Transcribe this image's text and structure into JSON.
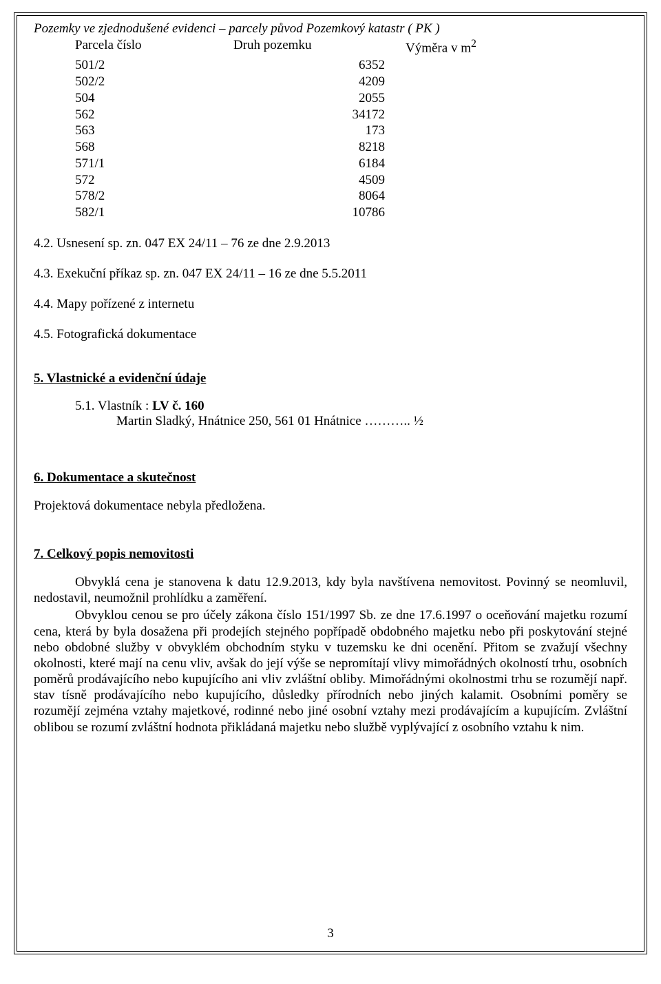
{
  "header": {
    "italic_title": "Pozemky ve zjednodušené evidenci – parcely původ Pozemkový katastr ( PK )",
    "col1": "Parcela číslo",
    "col2": "Druh pozemku",
    "col3": "Výměra v m",
    "col3_sup": "2"
  },
  "parcels": [
    {
      "num": "501/2",
      "area": "6352"
    },
    {
      "num": "502/2",
      "area": "4209"
    },
    {
      "num": "504",
      "area": "2055"
    },
    {
      "num": "562",
      "area": "34172"
    },
    {
      "num": "563",
      "area": "173"
    },
    {
      "num": "568",
      "area": "8218"
    },
    {
      "num": "571/1",
      "area": "6184"
    },
    {
      "num": "572",
      "area": "4509"
    },
    {
      "num": "578/2",
      "area": "8064"
    },
    {
      "num": "582/1",
      "area": "10786"
    }
  ],
  "items": {
    "i42": "4.2. Usnesení sp. zn. 047  EX 24/11 – 76 ze dne 2.9.2013",
    "i43": "4.3. Exekuční příkaz  sp. zn. 047  EX 24/11 – 16  ze dne 5.5.2011",
    "i44": "4.4. Mapy pořízené z internetu",
    "i45": "4.5. Fotografická dokumentace"
  },
  "section5": {
    "title": "5. Vlastnické a evidenční údaje",
    "owner_prefix": "5.1. Vlastník :   ",
    "owner_label": "LV č. 160",
    "owner_name": "Martin Sladký, Hnátnice 250, 561 01 Hnátnice ……….. ½"
  },
  "section6": {
    "title": "6. Dokumentace a skutečnost",
    "body": "Projektová dokumentace nebyla předložena."
  },
  "section7": {
    "title": "7. Celkový popis nemovitosti",
    "p1": "Obvyklá cena je stanovena k datu 12.9.2013, kdy byla navštívena nemovitost. Povinný se neomluvil, nedostavil,  neumožnil prohlídku a zaměření.",
    "p2": "Obvyklou cenou se pro účely zákona číslo 151/1997 Sb. ze dne 17.6.1997 o oceňování majetku rozumí cena, která by byla dosažena při prodejích stejného popřípadě obdobného majetku nebo při poskytování stejné nebo obdobné služby v obvyklém obchodním styku v tuzemsku ke dni ocenění. Přitom se zvažují všechny okolnosti, které mají na cenu vliv, avšak do její výše se nepromítají vlivy mimořádných okolností trhu, osobních poměrů prodávajícího nebo kupujícího ani vliv zvláštní obliby. Mimořádnými okolnostmi trhu se rozumějí např. stav tísně prodávajícího nebo kupujícího, důsledky přírodních nebo jiných kalamit. Osobními poměry se rozumějí zejména vztahy majetkové, rodinné nebo jiné osobní vztahy mezi prodávajícím a kupujícím. Zvláštní oblibou se rozumí zvláštní hodnota přikládaná majetku nebo službě vyplývající z osobního vztahu k nim."
  },
  "page_number": "3"
}
